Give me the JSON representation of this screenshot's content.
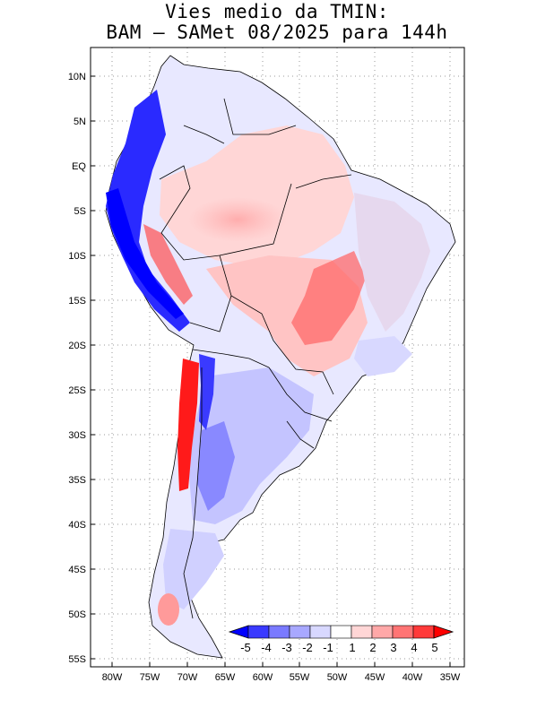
{
  "title": {
    "line1": "Vies medio da TMIN:",
    "line2": "BAM – SAMet 08/2025  para 144h"
  },
  "axes": {
    "lat_labels": [
      "10N",
      "5N",
      "EQ",
      "5S",
      "10S",
      "15S",
      "20S",
      "25S",
      "30S",
      "35S",
      "40S",
      "45S",
      "50S",
      "55S"
    ],
    "lon_labels": [
      "80W",
      "75W",
      "70W",
      "65W",
      "60W",
      "55W",
      "50W",
      "45W",
      "40W",
      "35W"
    ]
  },
  "colorbar": {
    "labels": [
      "-5",
      "-4",
      "-3",
      "-2",
      "-1",
      "1",
      "2",
      "3",
      "4",
      "5"
    ],
    "colors": [
      "#0000ff",
      "#3a3aff",
      "#7a7aff",
      "#a8a8ff",
      "#d8d8ff",
      "#ffffff",
      "#ffd6d6",
      "#ffa8a8",
      "#ff7474",
      "#ff3a3a",
      "#ff0000"
    ]
  }
}
